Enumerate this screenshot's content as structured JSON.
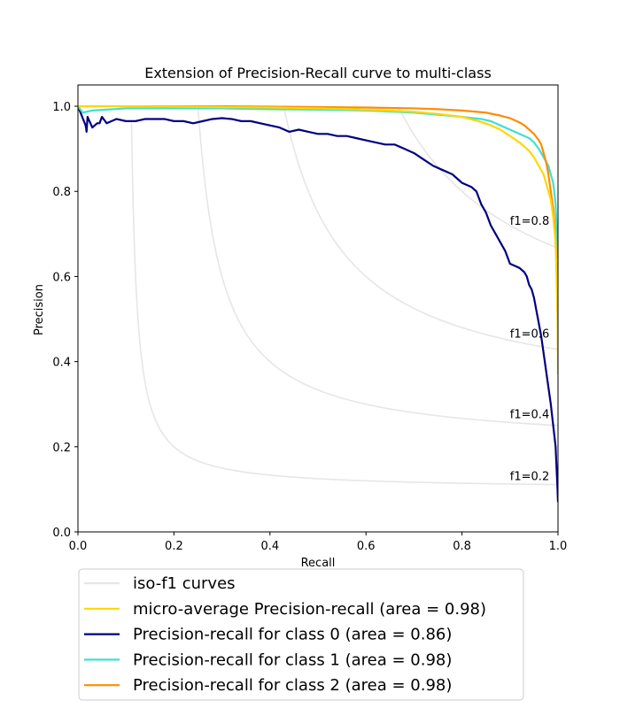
{
  "chart_data": {
    "type": "line",
    "title": "Extension of Precision-Recall curve to multi-class",
    "xlabel": "Recall",
    "ylabel": "Precision",
    "xlim": [
      0.0,
      1.0
    ],
    "ylim": [
      0.0,
      1.05
    ],
    "x_ticks": [
      "0.0",
      "0.2",
      "0.4",
      "0.6",
      "0.8",
      "1.0"
    ],
    "y_ticks": [
      "0.0",
      "0.2",
      "0.4",
      "0.6",
      "0.8",
      "1.0"
    ],
    "grid": false,
    "legend_placement": "below-plot",
    "iso_f1": {
      "color": "#e6e6e6",
      "levels": [
        0.2,
        0.4,
        0.6,
        0.8
      ],
      "labels": [
        {
          "text": "f1=0.2",
          "x": 0.9,
          "y": 0.13
        },
        {
          "text": "f1=0.4",
          "x": 0.9,
          "y": 0.275
        },
        {
          "text": "f1=0.6",
          "x": 0.9,
          "y": 0.465
        },
        {
          "text": "f1=0.8",
          "x": 0.9,
          "y": 0.73
        }
      ]
    },
    "legend": [
      {
        "label": "iso-f1 curves",
        "color": "#e6e6e6"
      },
      {
        "label": "micro-average Precision-recall (area = 0.98)",
        "color": "#ffd700"
      },
      {
        "label": "Precision-recall for class 0 (area = 0.86)",
        "color": "#000080"
      },
      {
        "label": "Precision-recall for class 1 (area = 0.98)",
        "color": "#40e0d0"
      },
      {
        "label": "Precision-recall for class 2 (area = 0.98)",
        "color": "#ff8c00"
      }
    ],
    "series": [
      {
        "name": "Precision-recall for class 0 (area = 0.86)",
        "color": "#000080",
        "x": [
          1.0,
          0.999,
          0.997,
          0.995,
          0.99,
          0.985,
          0.98,
          0.975,
          0.97,
          0.965,
          0.96,
          0.955,
          0.95,
          0.945,
          0.94,
          0.935,
          0.93,
          0.92,
          0.91,
          0.9,
          0.89,
          0.88,
          0.87,
          0.86,
          0.85,
          0.84,
          0.83,
          0.82,
          0.8,
          0.78,
          0.76,
          0.74,
          0.72,
          0.7,
          0.68,
          0.66,
          0.64,
          0.62,
          0.6,
          0.58,
          0.56,
          0.54,
          0.52,
          0.5,
          0.48,
          0.46,
          0.44,
          0.42,
          0.4,
          0.38,
          0.36,
          0.34,
          0.32,
          0.3,
          0.28,
          0.26,
          0.24,
          0.22,
          0.2,
          0.18,
          0.16,
          0.14,
          0.12,
          0.1,
          0.08,
          0.06,
          0.05,
          0.045,
          0.04,
          0.03,
          0.02,
          0.018,
          0.016,
          0.0
        ],
        "y": [
          0.07,
          0.1,
          0.15,
          0.2,
          0.25,
          0.3,
          0.34,
          0.38,
          0.42,
          0.46,
          0.49,
          0.52,
          0.55,
          0.57,
          0.58,
          0.6,
          0.61,
          0.62,
          0.625,
          0.63,
          0.66,
          0.68,
          0.7,
          0.72,
          0.75,
          0.77,
          0.8,
          0.81,
          0.82,
          0.84,
          0.85,
          0.86,
          0.875,
          0.89,
          0.9,
          0.91,
          0.91,
          0.915,
          0.92,
          0.925,
          0.93,
          0.93,
          0.935,
          0.935,
          0.94,
          0.945,
          0.94,
          0.95,
          0.955,
          0.96,
          0.965,
          0.965,
          0.97,
          0.972,
          0.97,
          0.965,
          0.96,
          0.965,
          0.965,
          0.97,
          0.97,
          0.97,
          0.965,
          0.965,
          0.97,
          0.96,
          0.975,
          0.96,
          0.96,
          0.95,
          0.975,
          0.94,
          0.955,
          1.0
        ]
      },
      {
        "name": "Precision-recall for class 1 (area = 0.98)",
        "color": "#40e0d0",
        "x": [
          1.0,
          0.998,
          0.995,
          0.99,
          0.985,
          0.98,
          0.97,
          0.96,
          0.95,
          0.94,
          0.92,
          0.9,
          0.88,
          0.86,
          0.84,
          0.8,
          0.75,
          0.7,
          0.6,
          0.5,
          0.4,
          0.3,
          0.2,
          0.1,
          0.03,
          0.01,
          0.0
        ],
        "y": [
          0.64,
          0.7,
          0.77,
          0.82,
          0.84,
          0.86,
          0.88,
          0.9,
          0.915,
          0.925,
          0.935,
          0.945,
          0.955,
          0.965,
          0.97,
          0.975,
          0.98,
          0.985,
          0.99,
          0.992,
          0.993,
          0.995,
          0.995,
          0.995,
          0.99,
          0.985,
          1.0
        ]
      },
      {
        "name": "Precision-recall for class 2 (area = 0.98)",
        "color": "#ff8c00",
        "x": [
          1.0,
          0.999,
          0.997,
          0.995,
          0.993,
          0.99,
          0.985,
          0.98,
          0.975,
          0.97,
          0.965,
          0.96,
          0.95,
          0.94,
          0.93,
          0.92,
          0.9,
          0.88,
          0.85,
          0.8,
          0.75,
          0.7,
          0.6,
          0.5,
          0.4,
          0.3,
          0.2,
          0.1,
          0.0
        ],
        "y": [
          0.42,
          0.55,
          0.63,
          0.68,
          0.72,
          0.76,
          0.8,
          0.84,
          0.87,
          0.89,
          0.91,
          0.92,
          0.935,
          0.945,
          0.955,
          0.962,
          0.972,
          0.978,
          0.985,
          0.99,
          0.993,
          0.995,
          0.997,
          0.998,
          0.999,
          1.0,
          1.0,
          1.0,
          1.0
        ]
      },
      {
        "name": "micro-average Precision-recall (area = 0.98)",
        "color": "#ffd700",
        "x": [
          1.0,
          0.999,
          0.997,
          0.995,
          0.99,
          0.985,
          0.98,
          0.975,
          0.97,
          0.96,
          0.95,
          0.94,
          0.92,
          0.9,
          0.88,
          0.86,
          0.84,
          0.8,
          0.75,
          0.7,
          0.6,
          0.5,
          0.4,
          0.3,
          0.2,
          0.1,
          0.0
        ],
        "y": [
          0.37,
          0.5,
          0.6,
          0.68,
          0.74,
          0.78,
          0.8,
          0.82,
          0.84,
          0.86,
          0.88,
          0.895,
          0.915,
          0.93,
          0.945,
          0.955,
          0.963,
          0.975,
          0.982,
          0.987,
          0.992,
          0.995,
          0.997,
          0.998,
          0.999,
          1.0,
          1.0
        ]
      }
    ]
  }
}
